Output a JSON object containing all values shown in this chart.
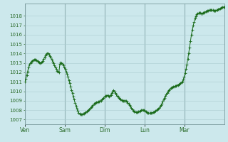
{
  "bg_color": "#cce8ec",
  "grid_color": "#aaccd0",
  "line_color": "#1a6b1a",
  "marker_color": "#1a6b1a",
  "tick_label_color": "#2a6b2a",
  "axis_label_color": "#2a6b2a",
  "ylim_min": 1007,
  "ylim_max": 1019,
  "yticks": [
    1007,
    1008,
    1009,
    1010,
    1011,
    1012,
    1013,
    1014,
    1015,
    1016,
    1017,
    1018
  ],
  "xtick_labels": [
    "Ven",
    "Sam",
    "Dim",
    "Lun",
    "Mar"
  ],
  "xtick_positions": [
    0.0,
    0.2,
    0.4,
    0.6,
    0.8
  ],
  "pressure_data": [
    1011.0,
    1011.3,
    1011.7,
    1012.1,
    1012.5,
    1012.8,
    1013.0,
    1013.1,
    1013.2,
    1013.3,
    1013.35,
    1013.38,
    1013.35,
    1013.3,
    1013.2,
    1013.1,
    1013.05,
    1013.0,
    1013.05,
    1013.1,
    1013.2,
    1013.4,
    1013.6,
    1013.8,
    1013.95,
    1014.0,
    1014.0,
    1013.9,
    1013.75,
    1013.55,
    1013.35,
    1013.15,
    1012.95,
    1012.75,
    1012.55,
    1012.35,
    1012.15,
    1012.05,
    1012.0,
    1012.9,
    1013.05,
    1013.0,
    1012.9,
    1012.75,
    1012.55,
    1012.35,
    1012.1,
    1011.85,
    1011.55,
    1011.2,
    1010.85,
    1010.5,
    1010.15,
    1009.8,
    1009.45,
    1009.1,
    1008.75,
    1008.45,
    1008.15,
    1007.9,
    1007.7,
    1007.6,
    1007.55,
    1007.52,
    1007.55,
    1007.6,
    1007.65,
    1007.7,
    1007.75,
    1007.82,
    1007.9,
    1008.0,
    1008.1,
    1008.2,
    1008.3,
    1008.42,
    1008.55,
    1008.65,
    1008.72,
    1008.78,
    1008.82,
    1008.85,
    1008.88,
    1008.9,
    1008.95,
    1009.0,
    1009.1,
    1009.2,
    1009.3,
    1009.4,
    1009.48,
    1009.52,
    1009.55,
    1009.5,
    1009.45,
    1009.5,
    1009.6,
    1009.8,
    1010.0,
    1010.1,
    1009.95,
    1009.8,
    1009.65,
    1009.5,
    1009.4,
    1009.3,
    1009.2,
    1009.1,
    1009.05,
    1009.0,
    1009.0,
    1009.0,
    1009.0,
    1008.95,
    1008.88,
    1008.78,
    1008.65,
    1008.5,
    1008.35,
    1008.2,
    1008.05,
    1007.95,
    1007.88,
    1007.82,
    1007.78,
    1007.77,
    1007.78,
    1007.82,
    1007.88,
    1007.93,
    1007.97,
    1008.0,
    1008.02,
    1008.0,
    1007.95,
    1007.88,
    1007.8,
    1007.74,
    1007.7,
    1007.68,
    1007.68,
    1007.7,
    1007.72,
    1007.75,
    1007.8,
    1007.85,
    1007.92,
    1007.98,
    1008.05,
    1008.12,
    1008.22,
    1008.35,
    1008.5,
    1008.68,
    1008.88,
    1009.1,
    1009.32,
    1009.52,
    1009.7,
    1009.85,
    1010.0,
    1010.12,
    1010.22,
    1010.32,
    1010.4,
    1010.45,
    1010.5,
    1010.52,
    1010.55,
    1010.58,
    1010.62,
    1010.67,
    1010.72,
    1010.78,
    1010.85,
    1010.92,
    1011.05,
    1011.25,
    1011.55,
    1011.9,
    1012.35,
    1012.85,
    1013.4,
    1014.0,
    1014.65,
    1015.3,
    1015.95,
    1016.5,
    1016.95,
    1017.35,
    1017.7,
    1017.98,
    1018.15,
    1018.25,
    1018.3,
    1018.32,
    1018.3,
    1018.28,
    1018.28,
    1018.3,
    1018.35,
    1018.4,
    1018.45,
    1018.5,
    1018.55,
    1018.58,
    1018.6,
    1018.62,
    1018.63,
    1018.62,
    1018.6,
    1018.58,
    1018.57,
    1018.58,
    1018.6,
    1018.63,
    1018.68,
    1018.72,
    1018.78,
    1018.83,
    1018.88,
    1018.91,
    1018.94,
    1018.96
  ]
}
